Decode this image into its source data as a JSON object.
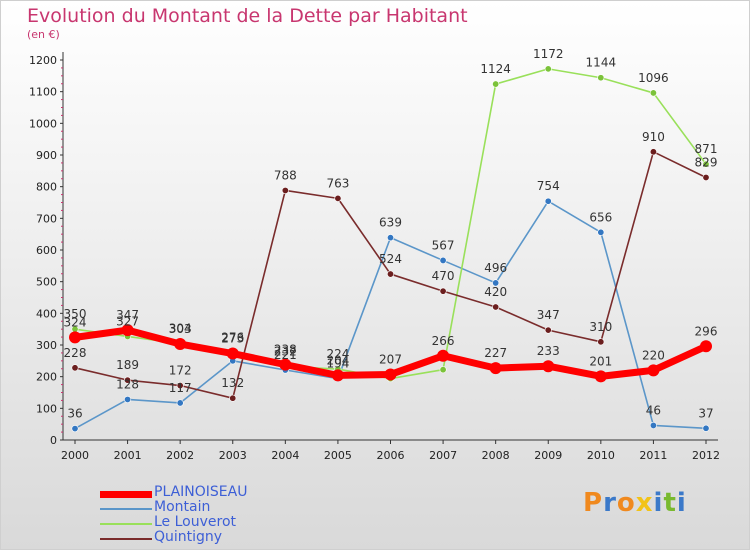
{
  "chart_title": "Evolution du Montant de la Dette par Habitant",
  "unit_label": "(en €)",
  "logo": {
    "letters": [
      "P",
      "r",
      "o",
      "x",
      "i",
      "t",
      "i"
    ],
    "colors": [
      "#f0891e",
      "#3b79c9",
      "#f0891e",
      "#f2c318",
      "#3b79c9",
      "#79b92e",
      "#3b79c9"
    ]
  },
  "chart_data": {
    "type": "line",
    "x": [
      "2000",
      "2001",
      "2002",
      "2003",
      "2004",
      "2005",
      "2006",
      "2007",
      "2008",
      "2009",
      "2010",
      "2011",
      "2012"
    ],
    "ylim": [
      0,
      1200
    ],
    "yticks": [
      0,
      100,
      200,
      300,
      400,
      500,
      600,
      700,
      800,
      900,
      1000,
      1100,
      1200
    ],
    "grid": false,
    "legend_position": "bottom-left",
    "series": [
      {
        "name": "Montain",
        "color": "#5b96c9",
        "marker": "#3377c2",
        "values": [
          36,
          128,
          117,
          250,
          221,
          194,
          639,
          567,
          496,
          754,
          656,
          46,
          37
        ],
        "labels": [
          "36",
          "128",
          "117",
          "",
          "221",
          "194",
          "639",
          "567",
          "496",
          "754",
          "656",
          "46",
          "37"
        ]
      },
      {
        "name": "Le Louverot",
        "color": "#99e05a",
        "marker": "#7bc23a",
        "values": [
          350,
          327,
          304,
          276,
          232,
          224,
          194,
          222,
          1124,
          1172,
          1144,
          1096,
          871
        ],
        "labels": [
          "350",
          "327",
          "304",
          "276",
          "232",
          "224",
          "",
          "",
          "1124",
          "1172",
          "1144",
          "1096",
          "871"
        ]
      },
      {
        "name": "Quintigny",
        "color": "#7a2c2c",
        "marker": "#6b1e1e",
        "values": [
          228,
          189,
          172,
          132,
          788,
          763,
          524,
          470,
          420,
          347,
          310,
          910,
          829
        ],
        "labels": [
          "228",
          "189",
          "172",
          "132",
          "788",
          "763",
          "524",
          "470",
          "420",
          "347",
          "310",
          "910",
          "829"
        ]
      },
      {
        "name": "PLAINOISEAU",
        "color": "#ff0000",
        "marker": "#ff0000",
        "values": [
          324,
          347,
          303,
          273,
          238,
          204,
          207,
          266,
          227,
          233,
          201,
          220,
          296
        ],
        "labels": [
          "324",
          "347",
          "303",
          "273",
          "238",
          "204",
          "207",
          "266",
          "227",
          "233",
          "201",
          "220",
          "296"
        ]
      }
    ]
  }
}
